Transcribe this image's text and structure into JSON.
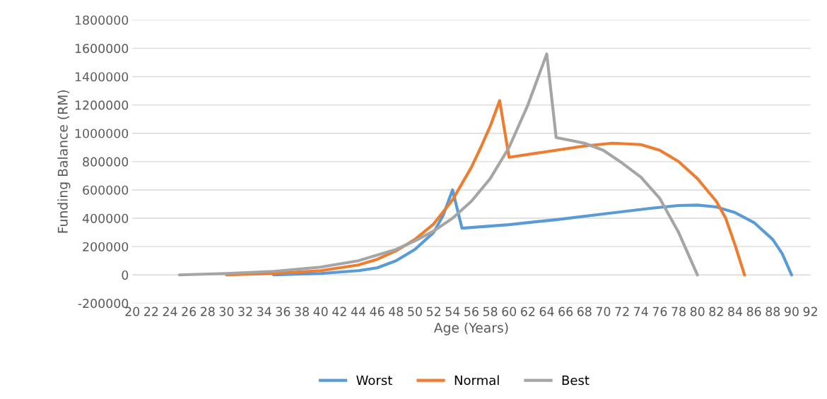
{
  "chart_data": {
    "type": "line",
    "xlabel": "Age (Years)",
    "ylabel": "Funding Balance (RM)",
    "xlim": [
      20,
      92
    ],
    "xticks": [
      20,
      22,
      24,
      26,
      28,
      30,
      32,
      34,
      36,
      38,
      40,
      42,
      44,
      46,
      48,
      50,
      52,
      54,
      56,
      58,
      60,
      62,
      64,
      66,
      68,
      70,
      72,
      74,
      76,
      78,
      80,
      82,
      84,
      86,
      88,
      90,
      92
    ],
    "ylim": [
      -200000,
      1800000
    ],
    "yticks": [
      -200000,
      0,
      200000,
      400000,
      600000,
      800000,
      1000000,
      1200000,
      1400000,
      1600000,
      1800000
    ],
    "grid": "y",
    "legend": "bottom",
    "line_style": "solid",
    "marker": "none",
    "series": [
      {
        "name": "Worst",
        "color": "#5b9bd5",
        "x": [
          35,
          40,
          44,
          46,
          48,
          50,
          52,
          53,
          54,
          55,
          60,
          65,
          70,
          75,
          78,
          80,
          82,
          84,
          86,
          88,
          89,
          90
        ],
        "values": [
          0,
          10000,
          30000,
          50000,
          100000,
          180000,
          300000,
          420000,
          600000,
          330000,
          355000,
          390000,
          430000,
          470000,
          490000,
          493000,
          480000,
          440000,
          370000,
          250000,
          150000,
          0
        ]
      },
      {
        "name": "Normal",
        "color": "#ed7d31",
        "x": [
          30,
          35,
          40,
          44,
          46,
          48,
          50,
          52,
          54,
          56,
          57,
          58,
          59,
          60,
          64,
          68,
          71,
          74,
          76,
          78,
          80,
          82,
          83,
          84,
          85
        ],
        "values": [
          0,
          10000,
          30000,
          70000,
          110000,
          170000,
          250000,
          360000,
          530000,
          760000,
          900000,
          1050000,
          1230000,
          830000,
          870000,
          910000,
          930000,
          920000,
          880000,
          800000,
          680000,
          520000,
          400000,
          210000,
          0
        ]
      },
      {
        "name": "Best",
        "color": "#a5a5a5",
        "x": [
          25,
          30,
          35,
          40,
          44,
          48,
          50,
          52,
          54,
          56,
          58,
          60,
          62,
          64,
          65,
          68,
          70,
          72,
          74,
          76,
          78,
          80
        ],
        "values": [
          0,
          10000,
          25000,
          55000,
          100000,
          180000,
          240000,
          310000,
          400000,
          520000,
          680000,
          900000,
          1200000,
          1560000,
          970000,
          930000,
          880000,
          790000,
          690000,
          540000,
          300000,
          0
        ]
      }
    ]
  }
}
